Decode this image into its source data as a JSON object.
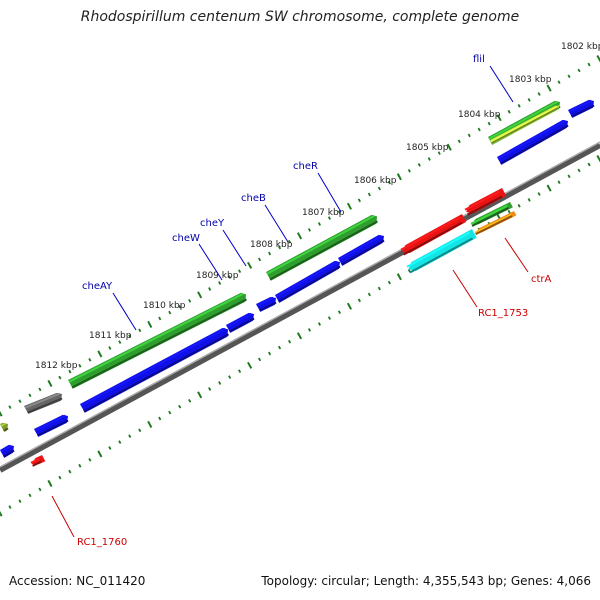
{
  "title": "Rhodospirillum centenum SW chromosome, complete genome",
  "footer": {
    "accession": "Accession: NC_011420",
    "topology": "Topology: circular; Length: 4,355,543 bp; Genes: 4,066"
  },
  "scale_labels": [
    "1802 kbp",
    "1803 kbp",
    "1804 kbp",
    "1805 kbp",
    "1806 kbp",
    "1807 kbp",
    "1808 kbp",
    "1809 kbp",
    "1810 kbp",
    "1811 kbp",
    "1812 kbp"
  ],
  "gene_labels_top": [
    "flil",
    "cheR",
    "cheB",
    "cheY",
    "cheW",
    "cheAY"
  ],
  "gene_labels_bottom": [
    "ctrA",
    "RC1_1753",
    "RC1_1760"
  ],
  "colors": {
    "green": "#2f9e2f",
    "lightgreen": "#b4ec3c",
    "blue": "#1010e6",
    "red": "#e81414",
    "cyan": "#14e4e4",
    "orange": "#f08a14",
    "gray": "#666666",
    "olive": "#7e9a2a",
    "label_blue": "#0000aa",
    "label_red": "#cc0000",
    "tick": "#1f7a1f"
  }
}
